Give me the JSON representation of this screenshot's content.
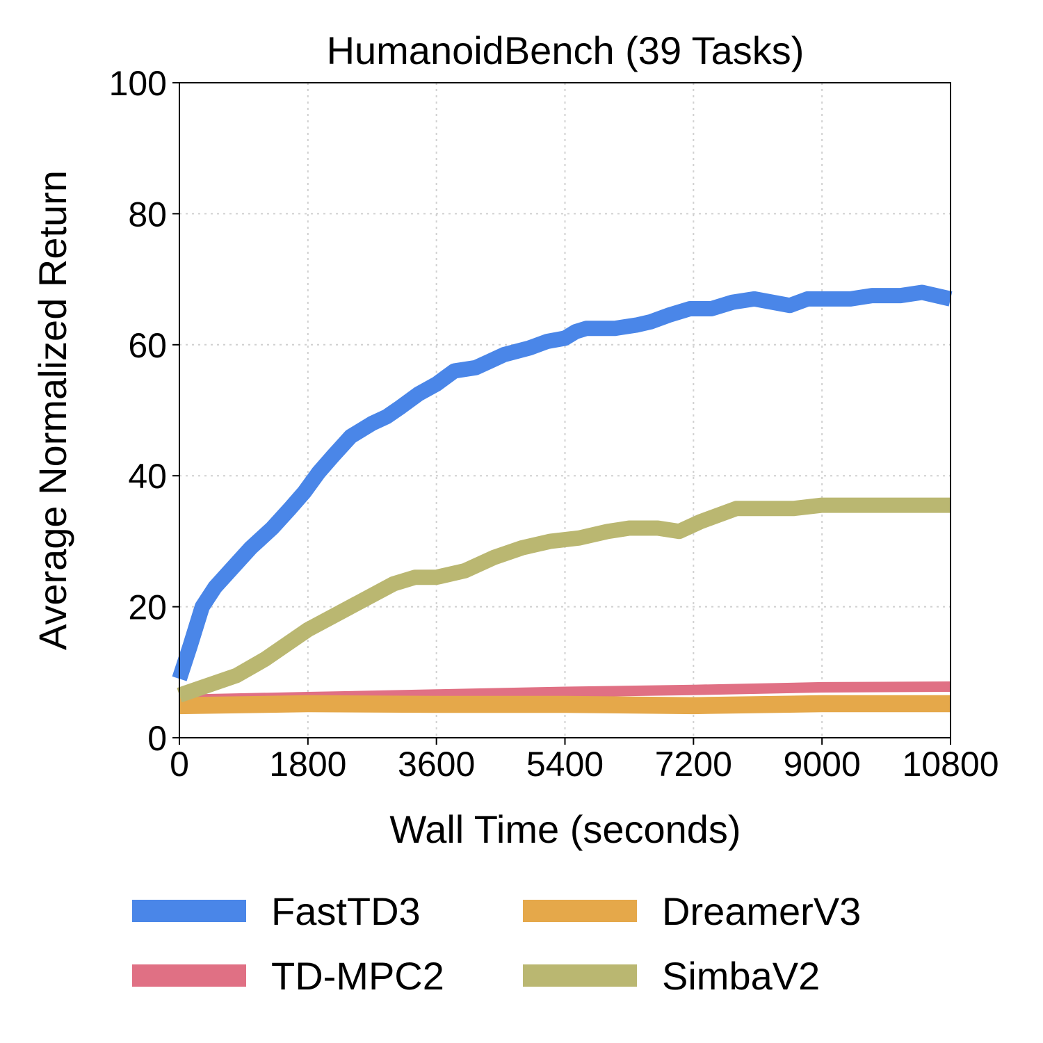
{
  "chart_data": {
    "type": "line",
    "title": "HumanoidBench (39 Tasks)",
    "xlabel": "Wall Time (seconds)",
    "ylabel": "Average Normalized Return",
    "xlim": [
      0,
      10800
    ],
    "ylim": [
      0,
      100
    ],
    "xticks": [
      0,
      1800,
      3600,
      5400,
      7200,
      9000,
      10800
    ],
    "xtick_labels": [
      "0",
      "1800",
      "3600",
      "5400",
      "7200",
      "9000",
      "10800"
    ],
    "yticks": [
      0,
      20,
      40,
      60,
      80,
      100
    ],
    "ytick_labels": [
      "0",
      "20",
      "40",
      "60",
      "80",
      "100"
    ],
    "grid": true,
    "legend_position": "bottom",
    "series": [
      {
        "name": "FastTD3",
        "color": "#4a86e8",
        "x": [
          0,
          150,
          320,
          500,
          750,
          1000,
          1300,
          1550,
          1750,
          1950,
          2150,
          2400,
          2700,
          2900,
          3100,
          3350,
          3600,
          3850,
          4150,
          4350,
          4550,
          4900,
          5150,
          5400,
          5550,
          5700,
          5850,
          6100,
          6400,
          6600,
          6850,
          7150,
          7450,
          7750,
          8050,
          8300,
          8550,
          8800,
          9150,
          9400,
          9700,
          10100,
          10400,
          10800
        ],
        "y": [
          9,
          14,
          20,
          23,
          26,
          29,
          32,
          35,
          37.5,
          40.5,
          43,
          46,
          48,
          49,
          50.5,
          52.5,
          54,
          56,
          56.5,
          57.5,
          58.5,
          59.5,
          60.5,
          61,
          62,
          62.5,
          62.5,
          62.5,
          63,
          63.5,
          64.5,
          65.5,
          65.5,
          66.5,
          67,
          66.5,
          66,
          67,
          67,
          67,
          67.5,
          67.5,
          68,
          67
        ]
      },
      {
        "name": "TD-MPC2",
        "color": "#e07084",
        "x": [
          0,
          1800,
          3600,
          5400,
          7200,
          9000,
          10800
        ],
        "y": [
          5.8,
          6.2,
          6.6,
          7.0,
          7.3,
          7.7,
          7.8
        ],
        "band": 1.6
      },
      {
        "name": "DreamerV3",
        "color": "#e5a84a",
        "x": [
          0,
          1800,
          3600,
          5400,
          7200,
          9000,
          10800
        ],
        "y": [
          4.9,
          5.2,
          5.1,
          5.1,
          4.9,
          5.2,
          5.2
        ],
        "band": 2.6
      },
      {
        "name": "SimbaV2",
        "color": "#bab771",
        "x": [
          0,
          400,
          800,
          1200,
          1800,
          2400,
          3000,
          3300,
          3600,
          4000,
          4400,
          4800,
          5200,
          5600,
          6000,
          6300,
          6700,
          7000,
          7300,
          7800,
          8200,
          8600,
          9000,
          9400,
          9800,
          10400,
          10800
        ],
        "y": [
          6.5,
          8,
          9.5,
          12,
          16.5,
          20,
          23.5,
          24.5,
          24.5,
          25.5,
          27.5,
          29,
          30,
          30.5,
          31.5,
          32,
          32,
          31.5,
          33,
          35,
          35,
          35,
          35.5,
          35.5,
          35.5,
          35.5,
          35.5
        ]
      }
    ]
  }
}
